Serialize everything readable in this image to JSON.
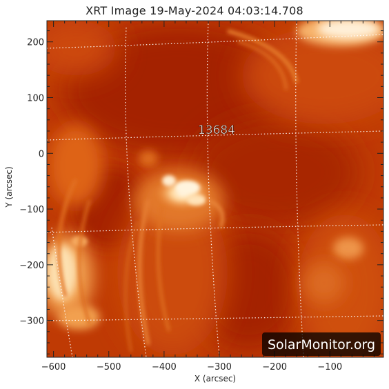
{
  "image": {
    "title": "XRT Image 19-May-2024 04:03:14.708",
    "xlabel": "X (arcsec)",
    "ylabel": "Y (arcsec)",
    "x_ticks": [
      "−600",
      "−500",
      "−400",
      "−300",
      "−200",
      "−100"
    ],
    "y_ticks": [
      "200",
      "100",
      "0",
      "−100",
      "−200",
      "−300"
    ],
    "x_range": [
      -612,
      -3
    ],
    "y_range": [
      -366,
      238
    ],
    "region_label": "13684",
    "watermark": "SolarMonitor.org",
    "colors": {
      "background_dark": "#a62400",
      "mid": "#d24a08",
      "bright": "#f7a040",
      "hot": "#fff2d4",
      "grid": "#ffffff"
    }
  }
}
